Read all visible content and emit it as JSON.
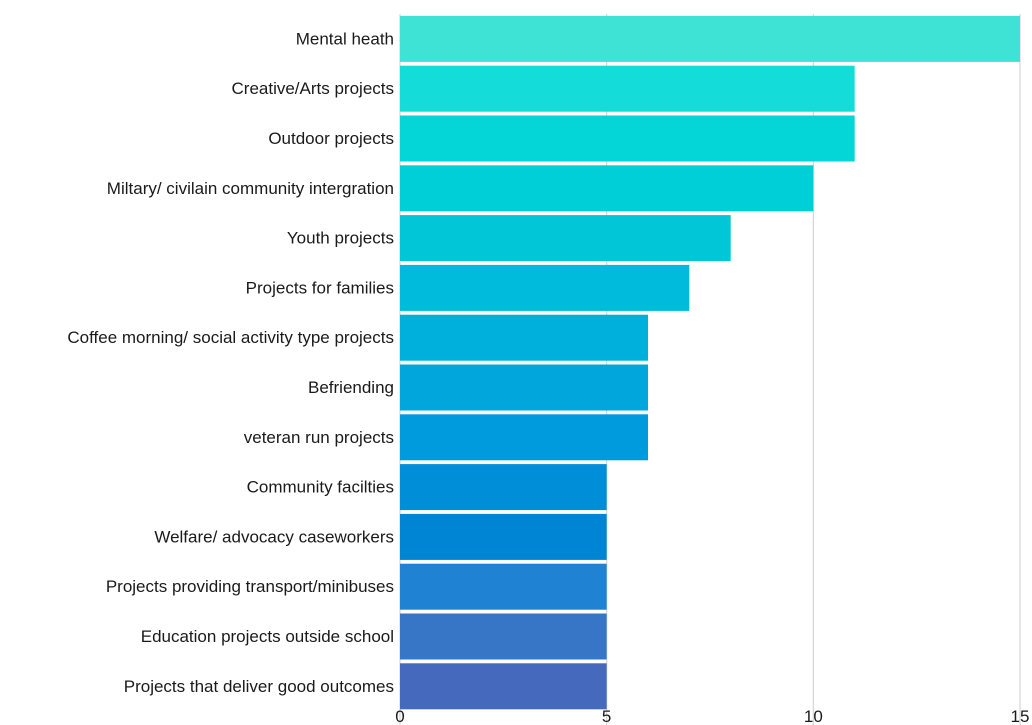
{
  "chart_data": {
    "type": "bar",
    "orientation": "horizontal",
    "title": "",
    "xlabel": "",
    "ylabel": "",
    "categories": [
      "Mental heath",
      "Creative/Arts projects",
      "Outdoor projects",
      "Miltary/ civilain community intergration",
      "Youth projects",
      "Projects for families",
      "Coffee morning/ social activity type projects",
      "Befriending",
      "veteran run projects",
      "Community facilties",
      "Welfare/ advocacy caseworkers",
      "Projects providing transport/minibuses",
      "Education projects outside school",
      "Projects that deliver good outcomes"
    ],
    "values": [
      15,
      11,
      11,
      10,
      8,
      7,
      6,
      6,
      6,
      5,
      5,
      5,
      5,
      5
    ],
    "xlim": [
      0,
      15
    ],
    "xticks": [
      0,
      5,
      10,
      15
    ],
    "grid": "vertical",
    "legend": "none",
    "bar_colors": [
      "#3ee3d6",
      "#14dcd8",
      "#04d6d8",
      "#00cfd8",
      "#00c6d8",
      "#00bbdb",
      "#00b0dc",
      "#00a6dc",
      "#009bdc",
      "#008ed9",
      "#0085d5",
      "#2082d2",
      "#3775c6",
      "#4469bd"
    ]
  }
}
